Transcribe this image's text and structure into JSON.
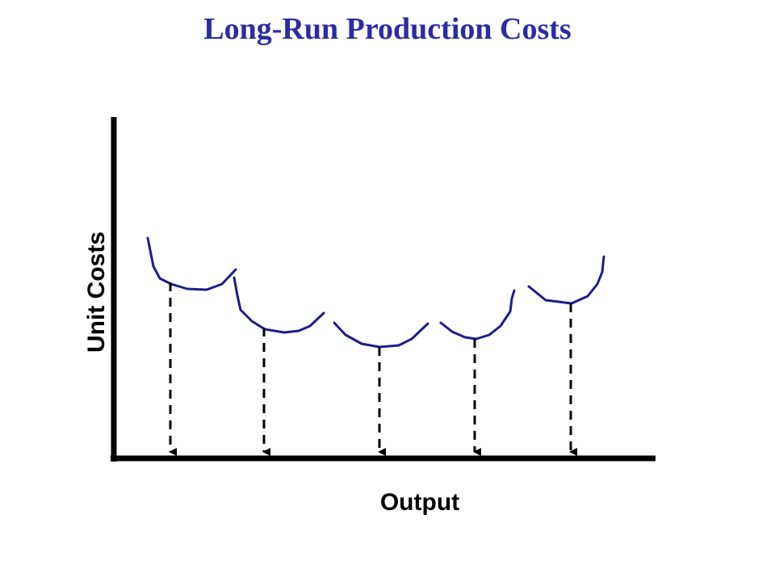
{
  "title": "Long-Run Production Costs",
  "y_axis_label": "Unit Costs",
  "x_axis_label": "Output",
  "colors": {
    "title": "#2b2ba6",
    "curves": "#1c1c8c",
    "axes": "#000000"
  }
}
